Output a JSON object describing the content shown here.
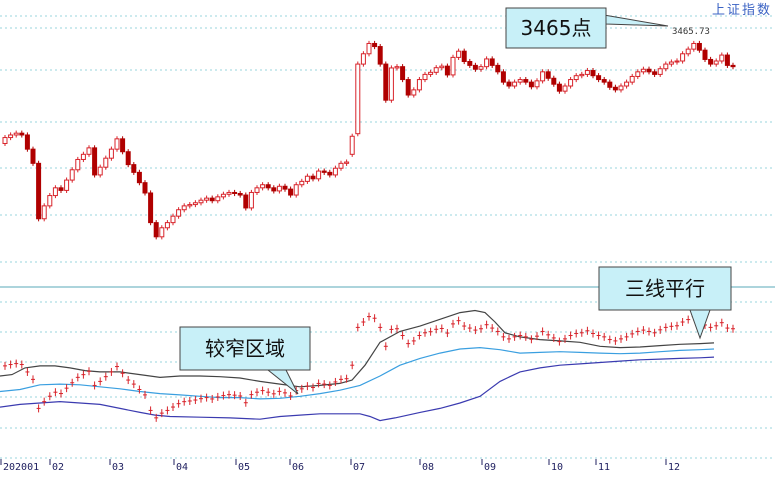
{
  "chart_data": {
    "type": "candlestick",
    "title": "上证指数",
    "peak_label": "3465.73",
    "x_ticks": [
      "202001",
      "02",
      "03",
      "04",
      "05",
      "06",
      "07",
      "08",
      "09",
      "10",
      "11",
      "12"
    ],
    "annotations": [
      {
        "text": "3465点",
        "target": "peak"
      },
      {
        "text": "较窄区域",
        "target": "narrow-band"
      },
      {
        "text": "三线平行",
        "target": "parallel-lines"
      }
    ],
    "upper_panel": {
      "series": "daily-candles",
      "ylim": [
        2600,
        3500
      ],
      "candles": [
        [
          3052,
          3075
        ],
        [
          3075,
          3085
        ],
        [
          3085,
          3092
        ],
        [
          3092,
          3085
        ],
        [
          3085,
          3030
        ],
        [
          3030,
          2975
        ],
        [
          2975,
          2760
        ],
        [
          2760,
          2810
        ],
        [
          2810,
          2850
        ],
        [
          2850,
          2880
        ],
        [
          2880,
          2870
        ],
        [
          2870,
          2910
        ],
        [
          2910,
          2950
        ],
        [
          2950,
          2990
        ],
        [
          2990,
          3010
        ],
        [
          3010,
          3035
        ],
        [
          3035,
          2930
        ],
        [
          2930,
          2960
        ],
        [
          2960,
          2995
        ],
        [
          2995,
          3030
        ],
        [
          3030,
          3070
        ],
        [
          3070,
          3020
        ],
        [
          3020,
          2970
        ],
        [
          2970,
          2940
        ],
        [
          2940,
          2900
        ],
        [
          2900,
          2860
        ],
        [
          2860,
          2745
        ],
        [
          2745,
          2690
        ],
        [
          2690,
          2725
        ],
        [
          2725,
          2745
        ],
        [
          2745,
          2770
        ],
        [
          2770,
          2795
        ],
        [
          2795,
          2810
        ],
        [
          2810,
          2815
        ],
        [
          2815,
          2822
        ],
        [
          2822,
          2832
        ],
        [
          2832,
          2840
        ],
        [
          2840,
          2830
        ],
        [
          2830,
          2845
        ],
        [
          2845,
          2855
        ],
        [
          2855,
          2862
        ],
        [
          2862,
          2858
        ],
        [
          2858,
          2852
        ],
        [
          2852,
          2802
        ],
        [
          2802,
          2862
        ],
        [
          2862,
          2880
        ],
        [
          2880,
          2892
        ],
        [
          2892,
          2880
        ],
        [
          2880,
          2868
        ],
        [
          2868,
          2886
        ],
        [
          2886,
          2875
        ],
        [
          2875,
          2852
        ],
        [
          2852,
          2892
        ],
        [
          2892,
          2905
        ],
        [
          2905,
          2925
        ],
        [
          2925,
          2915
        ],
        [
          2915,
          2945
        ],
        [
          2945,
          2940
        ],
        [
          2940,
          2930
        ],
        [
          2930,
          2956
        ],
        [
          2956,
          2975
        ],
        [
          2975,
          2980
        ],
        [
          3010,
          3080
        ],
        [
          3090,
          3360
        ],
        [
          3360,
          3400
        ],
        [
          3400,
          3440
        ],
        [
          3440,
          3428
        ],
        [
          3428,
          3360
        ],
        [
          3360,
          3220
        ],
        [
          3220,
          3345
        ],
        [
          3345,
          3350
        ],
        [
          3350,
          3300
        ],
        [
          3300,
          3240
        ],
        [
          3240,
          3260
        ],
        [
          3260,
          3300
        ],
        [
          3300,
          3320
        ],
        [
          3320,
          3328
        ],
        [
          3328,
          3346
        ],
        [
          3346,
          3352
        ],
        [
          3352,
          3318
        ],
        [
          3318,
          3386
        ],
        [
          3386,
          3410
        ],
        [
          3410,
          3370
        ],
        [
          3370,
          3355
        ],
        [
          3355,
          3340
        ],
        [
          3340,
          3350
        ],
        [
          3350,
          3380
        ],
        [
          3380,
          3355
        ],
        [
          3355,
          3330
        ],
        [
          3330,
          3290
        ],
        [
          3290,
          3275
        ],
        [
          3275,
          3290
        ],
        [
          3290,
          3300
        ],
        [
          3300,
          3290
        ],
        [
          3290,
          3272
        ],
        [
          3272,
          3295
        ],
        [
          3295,
          3330
        ],
        [
          3330,
          3305
        ],
        [
          3305,
          3282
        ],
        [
          3282,
          3255
        ],
        [
          3255,
          3275
        ],
        [
          3275,
          3300
        ],
        [
          3300,
          3315
        ],
        [
          3315,
          3320
        ],
        [
          3320,
          3335
        ],
        [
          3335,
          3315
        ],
        [
          3315,
          3300
        ],
        [
          3300,
          3290
        ],
        [
          3290,
          3270
        ],
        [
          3270,
          3260
        ],
        [
          3260,
          3275
        ],
        [
          3275,
          3290
        ],
        [
          3290,
          3312
        ],
        [
          3312,
          3330
        ],
        [
          3330,
          3340
        ],
        [
          3340,
          3330
        ],
        [
          3330,
          3320
        ],
        [
          3320,
          3342
        ],
        [
          3342,
          3360
        ],
        [
          3360,
          3368
        ],
        [
          3368,
          3372
        ],
        [
          3372,
          3400
        ],
        [
          3400,
          3418
        ],
        [
          3418,
          3440
        ],
        [
          3440,
          3414
        ],
        [
          3414,
          3378
        ],
        [
          3378,
          3360
        ],
        [
          3360,
          3372
        ],
        [
          3372,
          3395
        ],
        [
          3395,
          3355
        ],
        [
          3355,
          3350
        ]
      ]
    },
    "lower_panel": {
      "indicator": "bollinger",
      "ylim": [
        2600,
        3600
      ],
      "upper": [
        [
          0,
          3000
        ],
        [
          12,
          3010
        ],
        [
          25,
          3060
        ],
        [
          40,
          3075
        ],
        [
          55,
          3075
        ],
        [
          70,
          3060
        ],
        [
          85,
          3040
        ],
        [
          100,
          3030
        ],
        [
          120,
          3030
        ],
        [
          140,
          3010
        ],
        [
          160,
          2990
        ],
        [
          180,
          3000
        ],
        [
          200,
          3000
        ],
        [
          220,
          2995
        ],
        [
          240,
          2985
        ],
        [
          260,
          2960
        ],
        [
          280,
          2940
        ],
        [
          300,
          2920
        ],
        [
          320,
          2930
        ],
        [
          340,
          2945
        ],
        [
          352,
          2970
        ],
        [
          365,
          3080
        ],
        [
          380,
          3250
        ],
        [
          400,
          3330
        ],
        [
          420,
          3370
        ],
        [
          440,
          3420
        ],
        [
          460,
          3470
        ],
        [
          475,
          3485
        ],
        [
          485,
          3470
        ],
        [
          495,
          3400
        ],
        [
          505,
          3320
        ],
        [
          520,
          3290
        ],
        [
          540,
          3270
        ],
        [
          560,
          3260
        ],
        [
          580,
          3250
        ],
        [
          600,
          3220
        ],
        [
          620,
          3210
        ],
        [
          640,
          3215
        ],
        [
          660,
          3225
        ],
        [
          680,
          3235
        ],
        [
          700,
          3240
        ],
        [
          714,
          3245
        ]
      ],
      "mid": [
        [
          0,
          2885
        ],
        [
          20,
          2900
        ],
        [
          40,
          2935
        ],
        [
          60,
          2940
        ],
        [
          80,
          2935
        ],
        [
          100,
          2920
        ],
        [
          120,
          2905
        ],
        [
          140,
          2885
        ],
        [
          160,
          2870
        ],
        [
          180,
          2860
        ],
        [
          200,
          2850
        ],
        [
          220,
          2840
        ],
        [
          240,
          2840
        ],
        [
          260,
          2830
        ],
        [
          280,
          2835
        ],
        [
          300,
          2850
        ],
        [
          320,
          2870
        ],
        [
          340,
          2895
        ],
        [
          360,
          2930
        ],
        [
          380,
          3000
        ],
        [
          400,
          3080
        ],
        [
          420,
          3130
        ],
        [
          440,
          3170
        ],
        [
          460,
          3200
        ],
        [
          480,
          3210
        ],
        [
          500,
          3195
        ],
        [
          520,
          3170
        ],
        [
          540,
          3175
        ],
        [
          560,
          3180
        ],
        [
          580,
          3175
        ],
        [
          600,
          3170
        ],
        [
          620,
          3165
        ],
        [
          640,
          3170
        ],
        [
          660,
          3180
        ],
        [
          680,
          3190
        ],
        [
          700,
          3195
        ],
        [
          714,
          3200
        ]
      ],
      "lower": [
        [
          0,
          2770
        ],
        [
          20,
          2790
        ],
        [
          40,
          2800
        ],
        [
          60,
          2810
        ],
        [
          80,
          2800
        ],
        [
          100,
          2790
        ],
        [
          120,
          2760
        ],
        [
          140,
          2730
        ],
        [
          155,
          2710
        ],
        [
          170,
          2700
        ],
        [
          200,
          2695
        ],
        [
          230,
          2690
        ],
        [
          260,
          2680
        ],
        [
          280,
          2700
        ],
        [
          300,
          2710
        ],
        [
          320,
          2720
        ],
        [
          340,
          2720
        ],
        [
          360,
          2720
        ],
        [
          370,
          2700
        ],
        [
          380,
          2670
        ],
        [
          395,
          2690
        ],
        [
          420,
          2730
        ],
        [
          440,
          2760
        ],
        [
          460,
          2800
        ],
        [
          480,
          2850
        ],
        [
          500,
          2960
        ],
        [
          520,
          3030
        ],
        [
          540,
          3060
        ],
        [
          560,
          3080
        ],
        [
          580,
          3090
        ],
        [
          600,
          3100
        ],
        [
          620,
          3110
        ],
        [
          640,
          3120
        ],
        [
          660,
          3125
        ],
        [
          680,
          3130
        ],
        [
          700,
          3135
        ],
        [
          714,
          3140
        ]
      ]
    }
  },
  "colors": {
    "up": "#d8232a",
    "down": "#b00000",
    "grid": "#9ad4dc",
    "upper_band": "#444444",
    "mid_band": "#3a9fe0",
    "lower_band": "#3b3bb0",
    "callout_fill": "#c8f0f8",
    "callout_stroke": "#444444",
    "title": "#3b63c4",
    "separator": "#5aa8b8"
  }
}
